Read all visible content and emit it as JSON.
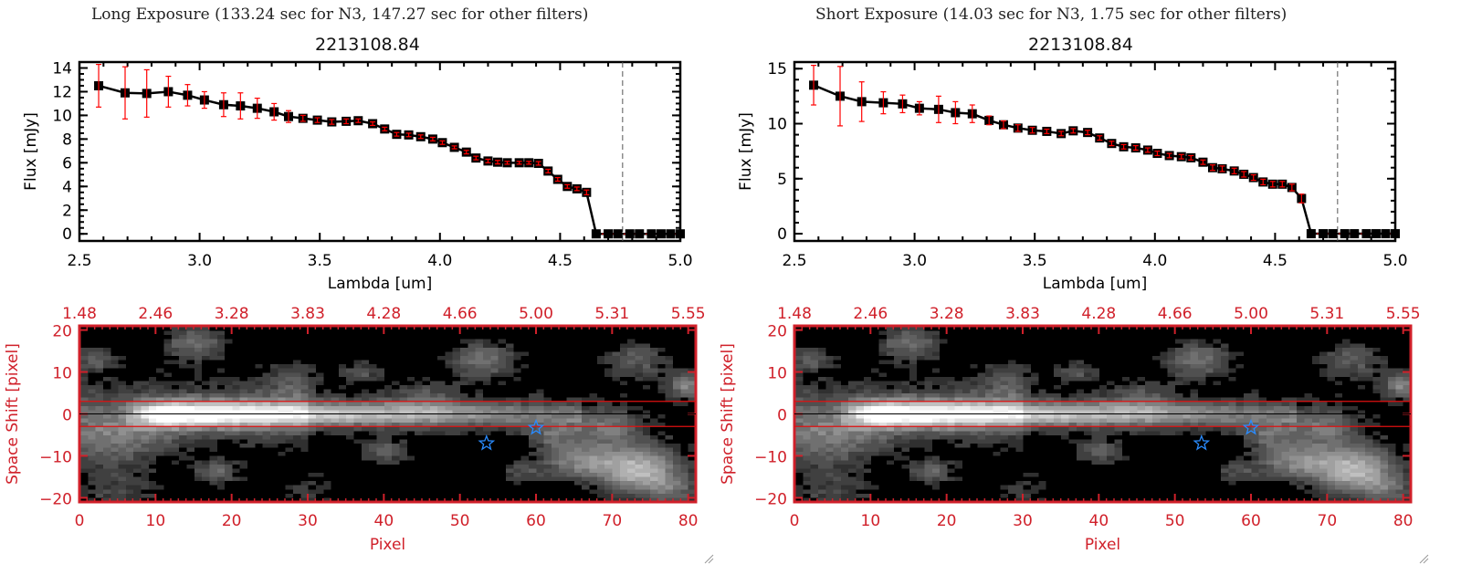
{
  "chart_data": [
    {
      "type": "line",
      "title": "Long Exposure (133.24 sec for N3, 147.27 sec for other filters)",
      "subtitle": "2213108.84",
      "xlabel": "Lambda [um]",
      "ylabel": "Flux [mJy]",
      "xlim": [
        2.5,
        5.0
      ],
      "ylim": [
        -0.6,
        14.5
      ],
      "xticks": [
        "2.5",
        "3.0",
        "3.5",
        "4.0",
        "4.5",
        "5.0"
      ],
      "yticks": [
        "0",
        "2",
        "4",
        "6",
        "8",
        "10",
        "12",
        "14"
      ],
      "ytick_values": [
        0,
        2,
        4,
        6,
        8,
        10,
        12,
        14
      ],
      "xtick_values": [
        2.5,
        3.0,
        3.5,
        4.0,
        4.5,
        5.0
      ],
      "cutoff_line": 4.76,
      "x": [
        2.58,
        2.69,
        2.78,
        2.87,
        2.95,
        3.02,
        3.1,
        3.17,
        3.24,
        3.31,
        3.37,
        3.43,
        3.49,
        3.55,
        3.61,
        3.66,
        3.72,
        3.77,
        3.82,
        3.87,
        3.92,
        3.97,
        4.01,
        4.06,
        4.11,
        4.15,
        4.2,
        4.24,
        4.28,
        4.33,
        4.37,
        4.41,
        4.45,
        4.49,
        4.53,
        4.57,
        4.61
      ],
      "y": [
        12.5,
        11.9,
        11.85,
        12.0,
        11.7,
        11.3,
        10.9,
        10.8,
        10.6,
        10.3,
        9.9,
        9.75,
        9.6,
        9.45,
        9.5,
        9.55,
        9.3,
        8.85,
        8.4,
        8.35,
        8.2,
        8.0,
        7.7,
        7.3,
        6.9,
        6.4,
        6.15,
        6.05,
        6.0,
        6.0,
        6.0,
        5.95,
        5.3,
        4.6,
        4.0,
        3.8,
        3.5
      ],
      "err": [
        1.8,
        2.2,
        2.0,
        1.3,
        0.9,
        0.7,
        1.0,
        1.1,
        0.85,
        0.7,
        0.5,
        0.25,
        0.2,
        0.2,
        0.2,
        0.15,
        0.15,
        0.15,
        0.15,
        0.15,
        0.15,
        0.15,
        0.15,
        0.12,
        0.15,
        0.15,
        0.15,
        0.15,
        0.12,
        0.12,
        0.12,
        0.15,
        0.15,
        0.15,
        0.15,
        0.15,
        0.2
      ],
      "zero_x": [
        4.65,
        4.7,
        4.74,
        4.79,
        4.83,
        4.88,
        4.92,
        4.96,
        5.0
      ]
    },
    {
      "type": "line",
      "title": "Short Exposure (14.03 sec for N3, 1.75 sec for other filters)",
      "subtitle": "2213108.84",
      "xlabel": "Lambda [um]",
      "ylabel": "Flux [mJy]",
      "xlim": [
        2.5,
        5.0
      ],
      "ylim": [
        -0.66,
        15.6
      ],
      "xticks": [
        "2.5",
        "3.0",
        "3.5",
        "4.0",
        "4.5",
        "5.0"
      ],
      "yticks": [
        "0",
        "5",
        "10",
        "15"
      ],
      "ytick_values": [
        0,
        5,
        10,
        15
      ],
      "xtick_values": [
        2.5,
        3.0,
        3.5,
        4.0,
        4.5,
        5.0
      ],
      "cutoff_line": 4.76,
      "x": [
        2.58,
        2.69,
        2.78,
        2.87,
        2.95,
        3.02,
        3.1,
        3.17,
        3.24,
        3.31,
        3.37,
        3.43,
        3.49,
        3.55,
        3.61,
        3.66,
        3.72,
        3.77,
        3.82,
        3.87,
        3.92,
        3.97,
        4.01,
        4.06,
        4.11,
        4.15,
        4.2,
        4.24,
        4.28,
        4.33,
        4.37,
        4.41,
        4.45,
        4.49,
        4.53,
        4.57,
        4.61
      ],
      "y": [
        13.5,
        12.5,
        12.0,
        11.9,
        11.8,
        11.4,
        11.3,
        11.0,
        10.9,
        10.3,
        9.9,
        9.6,
        9.4,
        9.3,
        9.1,
        9.35,
        9.2,
        8.7,
        8.2,
        7.9,
        7.8,
        7.6,
        7.3,
        7.1,
        7.0,
        6.9,
        6.5,
        6.0,
        5.9,
        5.7,
        5.4,
        5.1,
        4.7,
        4.5,
        4.5,
        4.2,
        3.2
      ],
      "err": [
        1.8,
        2.7,
        1.8,
        1.0,
        0.8,
        0.6,
        1.2,
        1.0,
        0.8,
        0.4,
        0.35,
        0.3,
        0.25,
        0.2,
        0.2,
        0.2,
        0.2,
        0.2,
        0.2,
        0.2,
        0.2,
        0.2,
        0.2,
        0.2,
        0.2,
        0.2,
        0.2,
        0.25,
        0.25,
        0.25,
        0.25,
        0.25,
        0.25,
        0.25,
        0.25,
        0.3,
        0.4
      ],
      "zero_x": [
        4.65,
        4.7,
        4.74,
        4.79,
        4.83,
        4.88,
        4.92,
        4.96,
        5.0
      ]
    },
    {
      "type": "heatmap",
      "xlabel": "Pixel",
      "ylabel": "Space Shift [pixel]",
      "xlim": [
        0,
        81
      ],
      "ylim": [
        -21,
        21
      ],
      "xticks": [
        "0",
        "10",
        "20",
        "30",
        "40",
        "50",
        "60",
        "70",
        "80"
      ],
      "xtick_values": [
        0,
        10,
        20,
        30,
        40,
        50,
        60,
        70,
        80
      ],
      "yticks": [
        "-20",
        "-10",
        "0",
        "10",
        "20"
      ],
      "ytick_values": [
        -20,
        -10,
        0,
        10,
        20
      ],
      "top_xticks": [
        "1.48",
        "2.46",
        "3.28",
        "3.83",
        "4.28",
        "4.66",
        "5.00",
        "5.31",
        "5.55"
      ],
      "aperture_lines": [
        3,
        -3
      ],
      "center_line": 0,
      "stars": [
        {
          "x": 53.5,
          "y": -7
        },
        {
          "x": 60,
          "y": -3.3
        }
      ]
    },
    {
      "type": "heatmap",
      "xlabel": "Pixel",
      "ylabel": "Space Shift [pixel]",
      "xlim": [
        0,
        81
      ],
      "ylim": [
        -21,
        21
      ],
      "xticks": [
        "0",
        "10",
        "20",
        "30",
        "40",
        "50",
        "60",
        "70",
        "80"
      ],
      "xtick_values": [
        0,
        10,
        20,
        30,
        40,
        50,
        60,
        70,
        80
      ],
      "yticks": [
        "-20",
        "-10",
        "0",
        "10",
        "20"
      ],
      "ytick_values": [
        -20,
        -10,
        0,
        10,
        20
      ],
      "top_xticks": [
        "1.48",
        "2.46",
        "3.28",
        "3.83",
        "4.28",
        "4.66",
        "5.00",
        "5.31",
        "5.55"
      ],
      "aperture_lines": [
        3,
        -3
      ],
      "center_line": 0,
      "stars": [
        {
          "x": 53.5,
          "y": -7
        },
        {
          "x": 60,
          "y": -3.3
        }
      ]
    }
  ],
  "colors": {
    "axis_red": "#d0202a",
    "errbar": "#ff0000",
    "star": "#2a8cff",
    "marker": "#000000"
  }
}
